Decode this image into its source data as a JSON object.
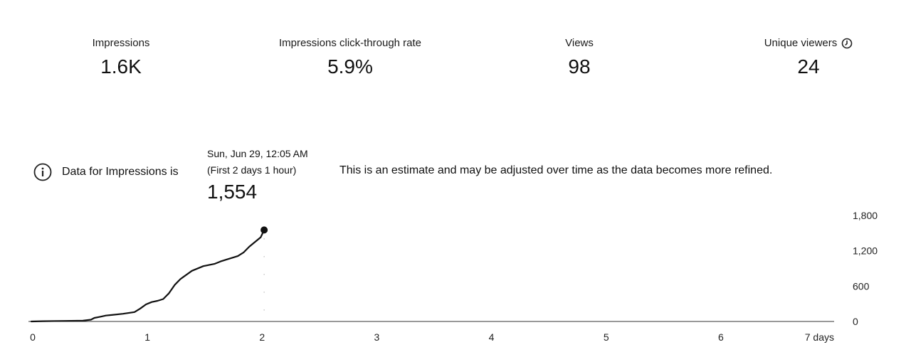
{
  "metrics": [
    {
      "label": "Impressions",
      "value": "1.6K"
    },
    {
      "label": "Impressions click-through rate",
      "value": "5.9%"
    },
    {
      "label": "Views",
      "value": "98"
    },
    {
      "label": "Unique viewers",
      "value": "24",
      "icon": "clock-icon"
    }
  ],
  "notice": {
    "icon": "info-icon",
    "text": "Data for Impressions is",
    "note": "This is an estimate and may be adjusted over time as the data becomes more refined."
  },
  "tooltip": {
    "date": "Sun, Jun 29, 12:05 AM",
    "subtitle": "(First 2 days 1 hour)",
    "value": "1,554"
  },
  "chart_data": {
    "type": "line",
    "xlim": [
      0,
      7
    ],
    "ylim": [
      0,
      1800
    ],
    "x_ticks": [
      0,
      1,
      2,
      3,
      4,
      5,
      6,
      7
    ],
    "x_tick_labels": [
      "0",
      "1",
      "2",
      "3",
      "4",
      "5",
      "6",
      "7 days"
    ],
    "y_ticks": [
      0,
      600,
      1200,
      1800
    ],
    "y_tick_labels": [
      "0",
      "600",
      "1,200",
      "1,800"
    ],
    "series": [
      {
        "color": "#111111",
        "x": [
          0,
          0.1,
          0.3,
          0.45,
          0.52,
          0.55,
          0.6,
          0.65,
          0.7,
          0.8,
          0.9,
          0.95,
          1.0,
          1.05,
          1.1,
          1.15,
          1.2,
          1.25,
          1.3,
          1.4,
          1.5,
          1.6,
          1.65,
          1.7,
          1.8,
          1.85,
          1.9,
          2.0,
          2.03
        ],
        "y": [
          0,
          5,
          10,
          15,
          30,
          60,
          80,
          100,
          110,
          130,
          160,
          220,
          290,
          330,
          350,
          380,
          480,
          620,
          720,
          860,
          940,
          980,
          1020,
          1050,
          1110,
          1170,
          1270,
          1430,
          1554
        ]
      }
    ],
    "highlight_point": {
      "x": 2.03,
      "y": 1554
    },
    "grid": false
  }
}
